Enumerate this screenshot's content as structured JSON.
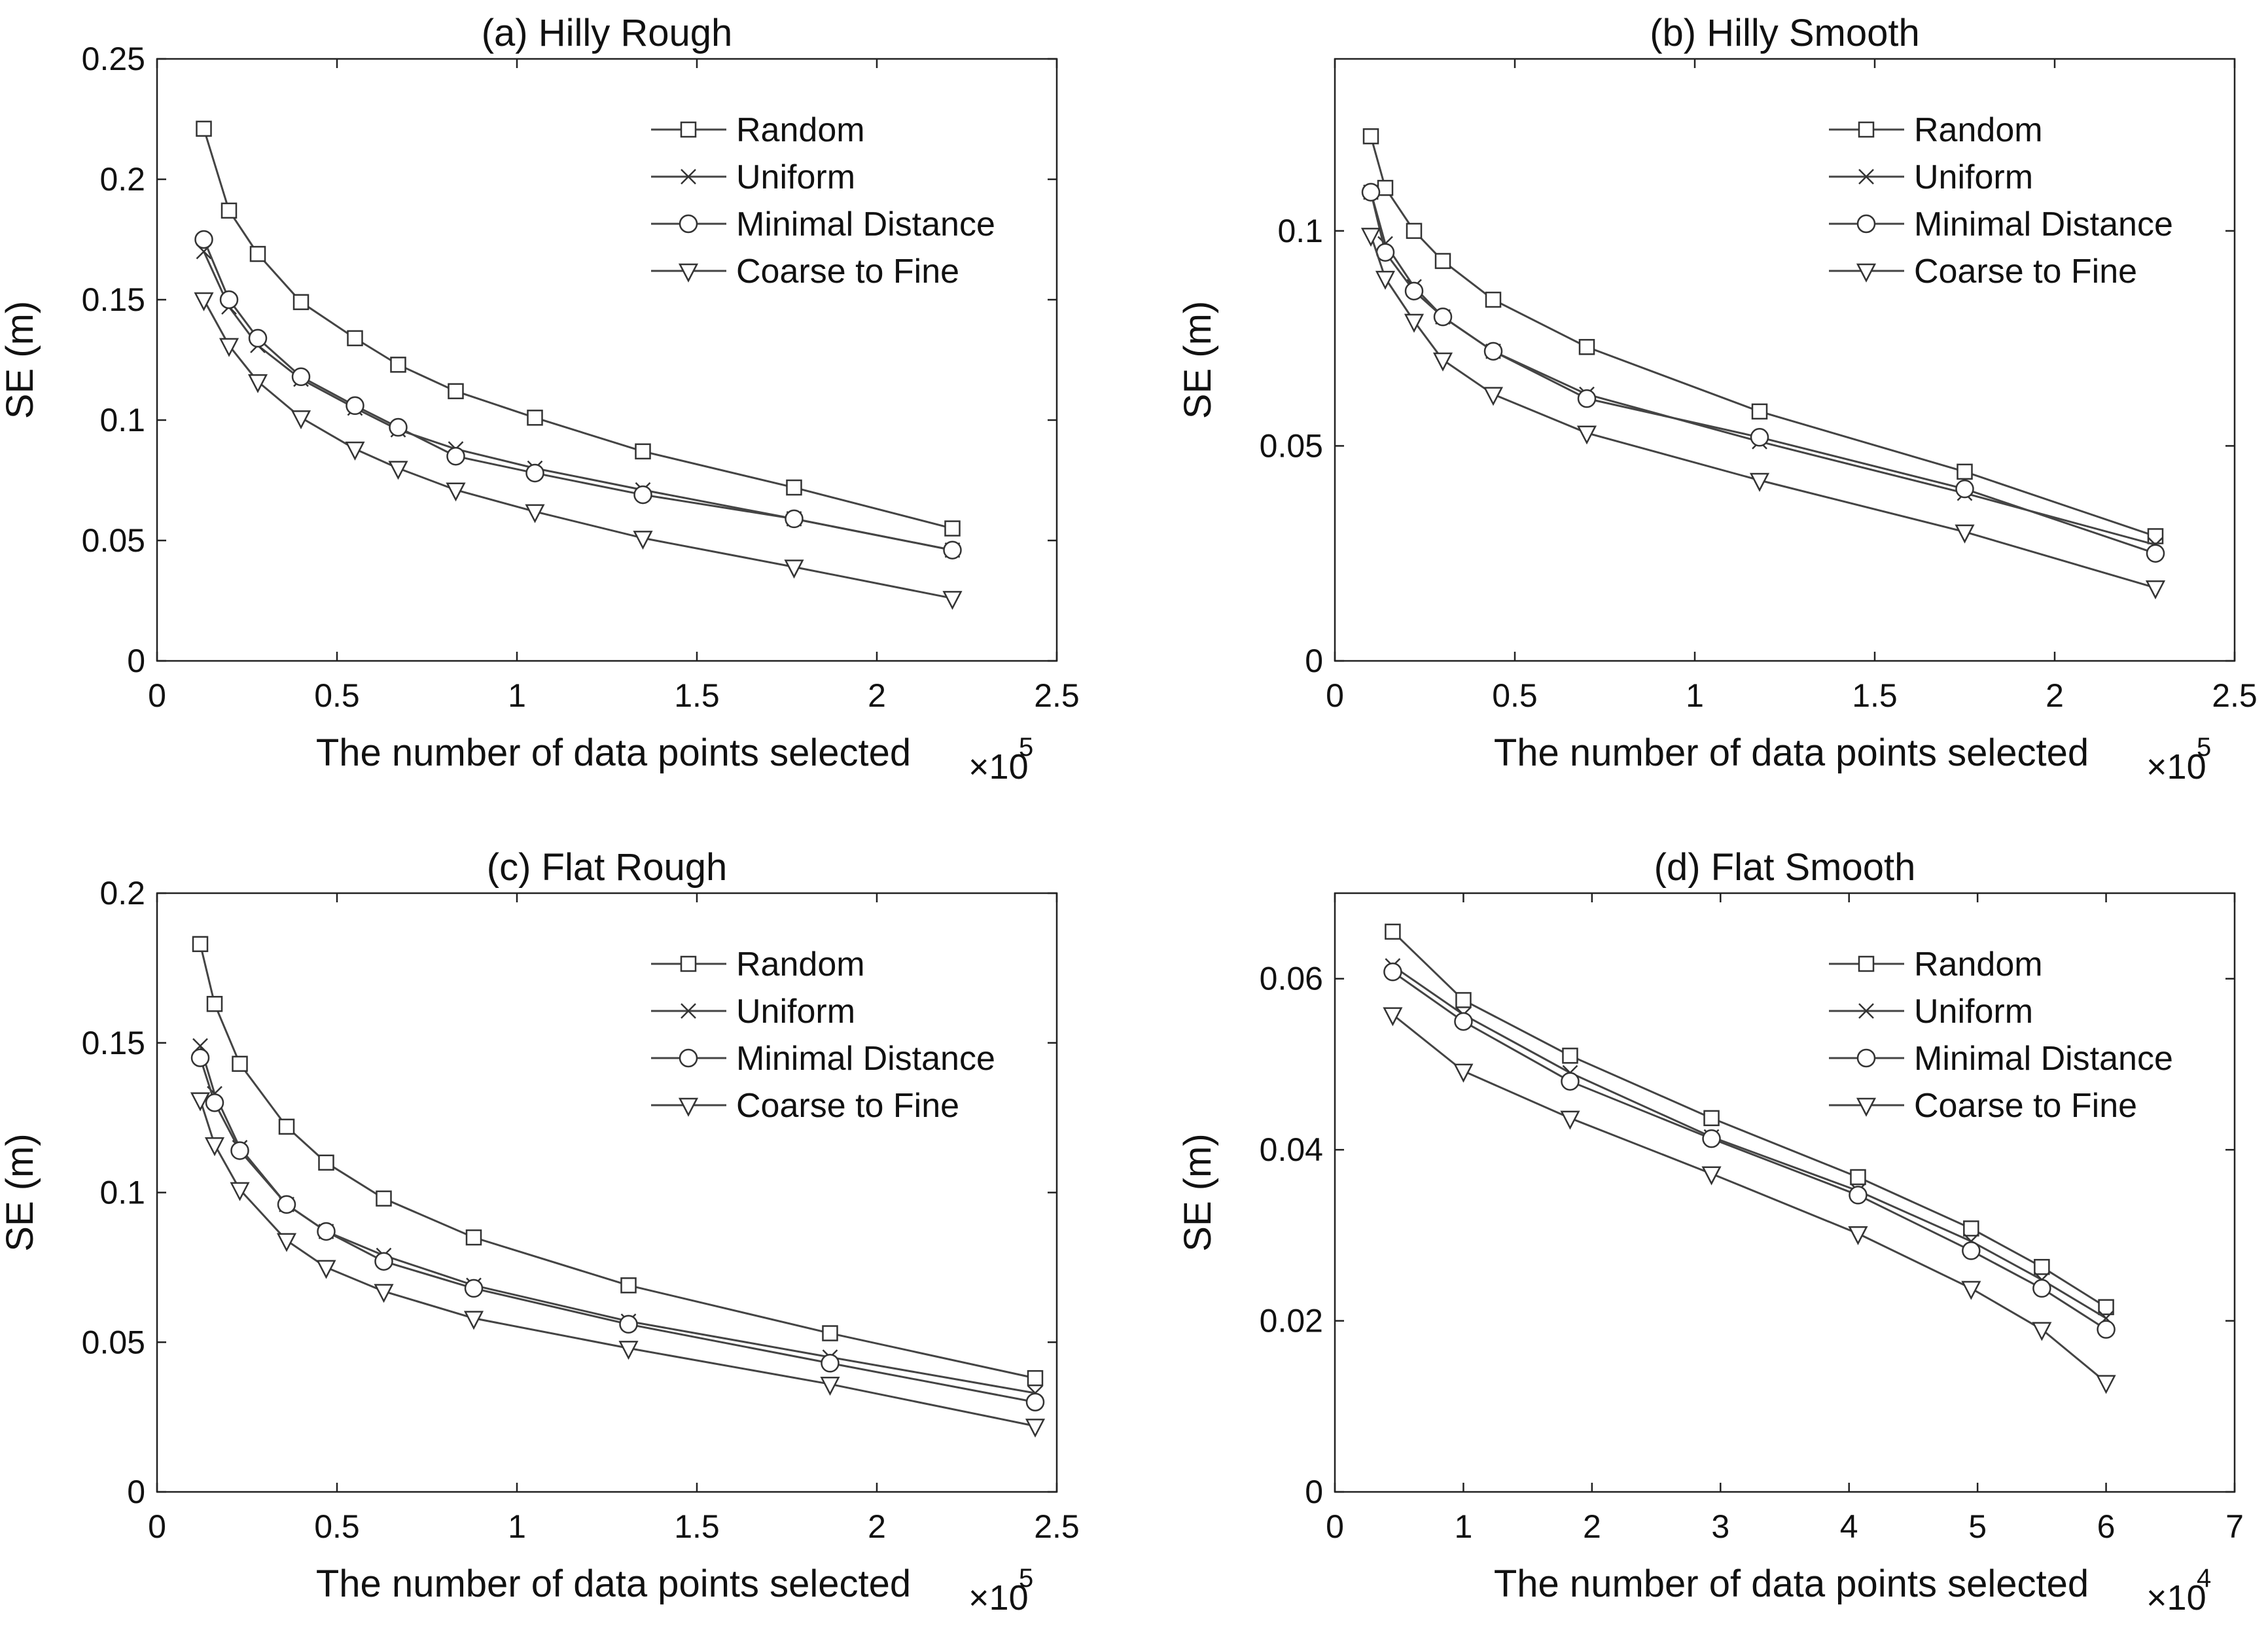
{
  "chart_data": [
    {
      "type": "line",
      "title": "(a) Hilly Rough",
      "xlabel": "The number of data points selected",
      "ylabel": "SE (m)",
      "xlim": [
        0,
        2.5
      ],
      "ylim": [
        0,
        0.25
      ],
      "xticks": [
        "0",
        "0.5",
        "1",
        "1.5",
        "2",
        "2.5"
      ],
      "yticks": [
        "0",
        "0.05",
        "0.1",
        "0.15",
        "0.2",
        "0.25"
      ],
      "xmultiplier": {
        "base": "×10",
        "exp": "5"
      },
      "legend_position": "top-right",
      "series": [
        {
          "name": "Random",
          "marker": "square",
          "x": [
            0.13,
            0.2,
            0.28,
            0.4,
            0.55,
            0.67,
            0.83,
            1.05,
            1.35,
            1.77,
            2.21
          ],
          "y": [
            0.221,
            0.187,
            0.169,
            0.149,
            0.134,
            0.123,
            0.112,
            0.101,
            0.087,
            0.072,
            0.055
          ]
        },
        {
          "name": "Uniform",
          "marker": "x",
          "x": [
            0.13,
            0.2,
            0.28,
            0.4,
            0.55,
            0.67,
            0.83,
            1.05,
            1.35,
            1.77,
            2.21
          ],
          "y": [
            0.17,
            0.147,
            0.131,
            0.117,
            0.105,
            0.096,
            0.088,
            0.08,
            0.071,
            0.059,
            0.046
          ]
        },
        {
          "name": "Minimal Distance",
          "marker": "circle",
          "x": [
            0.13,
            0.2,
            0.28,
            0.4,
            0.55,
            0.67,
            0.83,
            1.05,
            1.35,
            1.77,
            2.21
          ],
          "y": [
            0.175,
            0.15,
            0.134,
            0.118,
            0.106,
            0.097,
            0.085,
            0.078,
            0.069,
            0.059,
            0.046
          ]
        },
        {
          "name": "Coarse to Fine",
          "marker": "triangle-down",
          "x": [
            0.13,
            0.2,
            0.28,
            0.4,
            0.55,
            0.67,
            0.83,
            1.05,
            1.35,
            1.77,
            2.21
          ],
          "y": [
            0.15,
            0.131,
            0.116,
            0.101,
            0.088,
            0.08,
            0.071,
            0.062,
            0.051,
            0.039,
            0.026
          ]
        }
      ]
    },
    {
      "type": "line",
      "title": "(b) Hilly Smooth",
      "xlabel": "The number of data points selected",
      "ylabel": "SE (m)",
      "xlim": [
        0,
        2.5
      ],
      "ylim": [
        0,
        0.14
      ],
      "xticks": [
        "0",
        "0.5",
        "1",
        "1.5",
        "2",
        "2.5"
      ],
      "yticks": [
        "0",
        "0.05",
        "0.1"
      ],
      "ytick_values": [
        0,
        0.05,
        0.1
      ],
      "xmultiplier": {
        "base": "×10",
        "exp": "5"
      },
      "legend_position": "top-right",
      "series": [
        {
          "name": "Random",
          "marker": "square",
          "x": [
            0.1,
            0.14,
            0.22,
            0.3,
            0.44,
            0.7,
            1.18,
            1.75,
            2.28
          ],
          "y": [
            0.122,
            0.11,
            0.1,
            0.093,
            0.084,
            0.073,
            0.058,
            0.044,
            0.029
          ]
        },
        {
          "name": "Uniform",
          "marker": "x",
          "x": [
            0.1,
            0.14,
            0.22,
            0.3,
            0.44,
            0.7,
            1.18,
            1.75,
            2.28
          ],
          "y": [
            0.109,
            0.097,
            0.087,
            0.08,
            0.072,
            0.062,
            0.051,
            0.039,
            0.027
          ]
        },
        {
          "name": "Minimal Distance",
          "marker": "circle",
          "x": [
            0.1,
            0.14,
            0.22,
            0.3,
            0.44,
            0.7,
            1.18,
            1.75,
            2.28
          ],
          "y": [
            0.109,
            0.095,
            0.086,
            0.08,
            0.072,
            0.061,
            0.052,
            0.04,
            0.025
          ]
        },
        {
          "name": "Coarse to Fine",
          "marker": "triangle-down",
          "x": [
            0.1,
            0.14,
            0.22,
            0.3,
            0.44,
            0.7,
            1.18,
            1.75,
            2.28
          ],
          "y": [
            0.099,
            0.089,
            0.079,
            0.07,
            0.062,
            0.053,
            0.042,
            0.03,
            0.017
          ]
        }
      ]
    },
    {
      "type": "line",
      "title": "(c) Flat Rough",
      "xlabel": "The number of data points selected",
      "ylabel": "SE (m)",
      "xlim": [
        0,
        2.5
      ],
      "ylim": [
        0,
        0.2
      ],
      "xticks": [
        "0",
        "0.5",
        "1",
        "1.5",
        "2",
        "2.5"
      ],
      "yticks": [
        "0",
        "0.05",
        "0.1",
        "0.15",
        "0.2"
      ],
      "xmultiplier": {
        "base": "×10",
        "exp": "5"
      },
      "legend_position": "top-right",
      "series": [
        {
          "name": "Random",
          "marker": "square",
          "x": [
            0.12,
            0.16,
            0.23,
            0.36,
            0.47,
            0.63,
            0.88,
            1.31,
            1.87,
            2.44
          ],
          "y": [
            0.183,
            0.163,
            0.143,
            0.122,
            0.11,
            0.098,
            0.085,
            0.069,
            0.053,
            0.038
          ]
        },
        {
          "name": "Uniform",
          "marker": "x",
          "x": [
            0.12,
            0.16,
            0.23,
            0.36,
            0.47,
            0.63,
            0.88,
            1.31,
            1.87,
            2.44
          ],
          "y": [
            0.149,
            0.133,
            0.115,
            0.096,
            0.087,
            0.079,
            0.069,
            0.057,
            0.045,
            0.033
          ]
        },
        {
          "name": "Minimal Distance",
          "marker": "circle",
          "x": [
            0.12,
            0.16,
            0.23,
            0.36,
            0.47,
            0.63,
            0.88,
            1.31,
            1.87,
            2.44
          ],
          "y": [
            0.145,
            0.13,
            0.114,
            0.096,
            0.087,
            0.077,
            0.068,
            0.056,
            0.043,
            0.03
          ]
        },
        {
          "name": "Coarse to Fine",
          "marker": "triangle-down",
          "x": [
            0.12,
            0.16,
            0.23,
            0.36,
            0.47,
            0.63,
            0.88,
            1.31,
            1.87,
            2.44
          ],
          "y": [
            0.131,
            0.116,
            0.101,
            0.084,
            0.075,
            0.067,
            0.058,
            0.048,
            0.036,
            0.022
          ]
        }
      ]
    },
    {
      "type": "line",
      "title": "(d) Flat Smooth",
      "xlabel": "The number of data points selected",
      "ylabel": "SE (m)",
      "xlim": [
        0,
        7
      ],
      "ylim": [
        0,
        0.07
      ],
      "xticks": [
        "0",
        "1",
        "2",
        "3",
        "4",
        "5",
        "6",
        "7"
      ],
      "yticks": [
        "0",
        "0.02",
        "0.04",
        "0.06"
      ],
      "ytick_values": [
        0,
        0.02,
        0.04,
        0.06
      ],
      "xmultiplier": {
        "base": "×10",
        "exp": "4"
      },
      "legend_position": "top-right",
      "series": [
        {
          "name": "Random",
          "marker": "square",
          "x": [
            0.45,
            1.0,
            1.83,
            2.93,
            4.07,
            4.95,
            5.5,
            6.0
          ],
          "y": [
            0.0655,
            0.0575,
            0.051,
            0.0437,
            0.0368,
            0.0308,
            0.0263,
            0.0216
          ]
        },
        {
          "name": "Uniform",
          "marker": "x",
          "x": [
            0.45,
            1.0,
            1.83,
            2.93,
            4.07,
            4.95,
            5.5,
            6.0
          ],
          "y": [
            0.0615,
            0.0558,
            0.049,
            0.0415,
            0.0352,
            0.0293,
            0.0248,
            0.0203
          ]
        },
        {
          "name": "Minimal Distance",
          "marker": "circle",
          "x": [
            0.45,
            1.0,
            1.83,
            2.93,
            4.07,
            4.95,
            5.5,
            6.0
          ],
          "y": [
            0.0608,
            0.055,
            0.048,
            0.0413,
            0.0347,
            0.0282,
            0.0238,
            0.019
          ]
        },
        {
          "name": "Coarse to Fine",
          "marker": "triangle-down",
          "x": [
            0.45,
            1.0,
            1.83,
            2.93,
            4.07,
            4.95,
            5.5,
            6.0
          ],
          "y": [
            0.0558,
            0.0492,
            0.0437,
            0.0372,
            0.0302,
            0.0238,
            0.019,
            0.0128
          ]
        }
      ]
    }
  ]
}
